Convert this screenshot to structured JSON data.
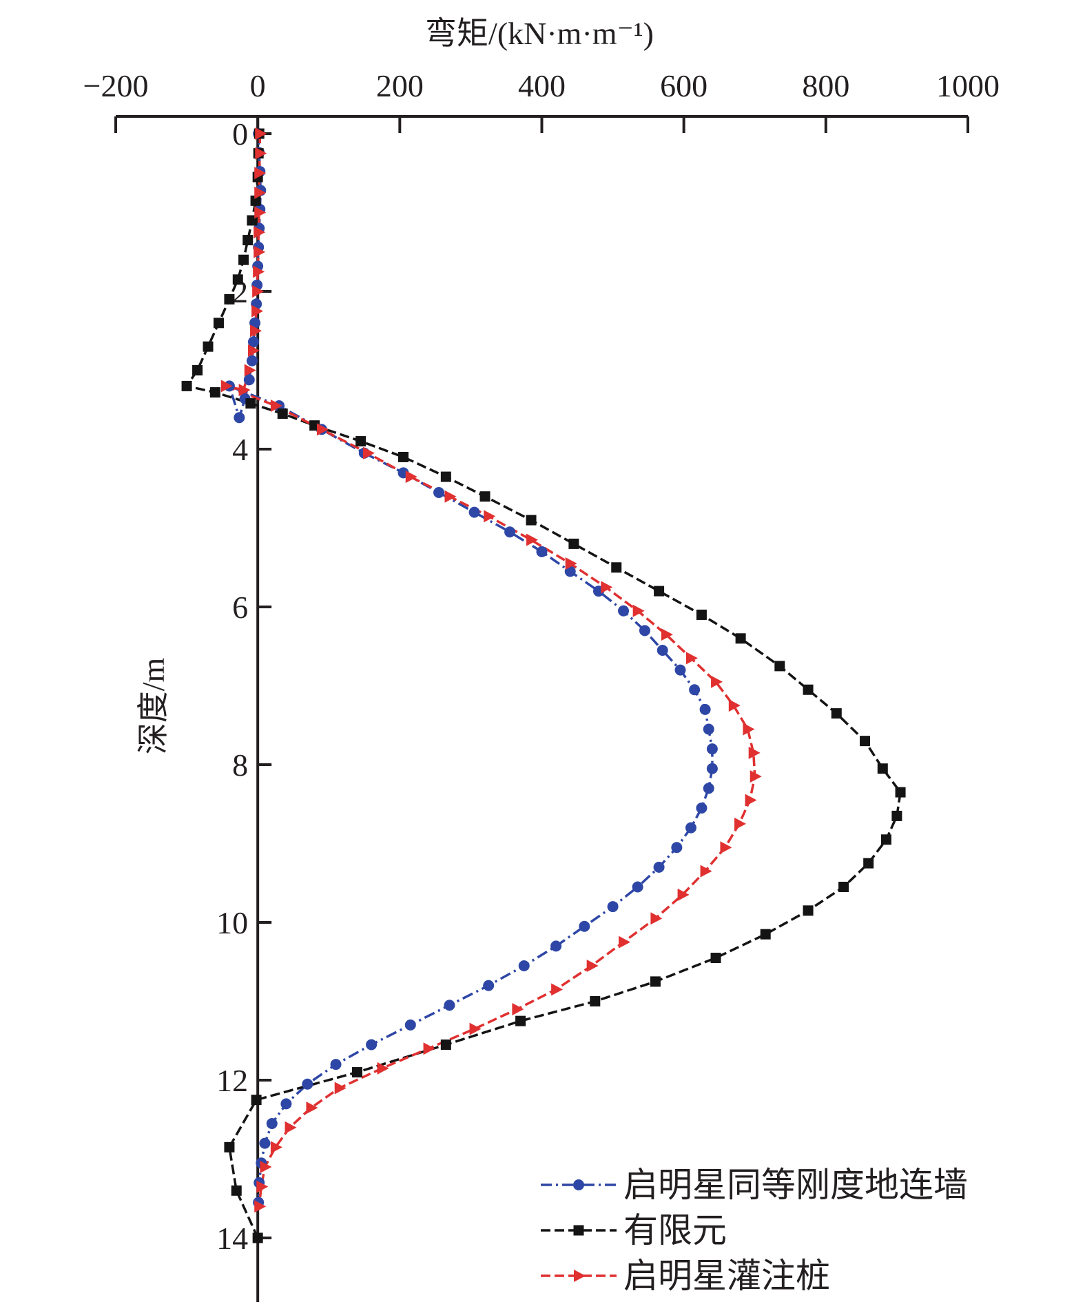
{
  "chart_data": {
    "type": "line",
    "xlabel": "弯矩/(kN·m·m⁻¹)",
    "ylabel": "深度/m",
    "xlim": [
      -200,
      1000
    ],
    "ylim": [
      0,
      15
    ],
    "x_axis_position": "top",
    "y_axis_inverted": true,
    "grid": false,
    "legend_position": "bottom-right",
    "xticks": [
      "−200",
      "0",
      "200",
      "400",
      "600",
      "800",
      "1000"
    ],
    "yticks": [
      "0",
      "2",
      "4",
      "6",
      "8",
      "10",
      "12",
      "14"
    ],
    "series": [
      {
        "name": "启明星同等刚度地连墙",
        "color": "#2e47a6",
        "marker": "circle",
        "dash": "dash-dot",
        "points": [
          [
            1,
            0
          ],
          [
            2,
            0.24
          ],
          [
            3,
            0.48
          ],
          [
            4,
            0.72
          ],
          [
            3,
            0.96
          ],
          [
            2,
            1.2
          ],
          [
            1,
            1.44
          ],
          [
            0,
            1.68
          ],
          [
            -1,
            1.92
          ],
          [
            -2,
            2.16
          ],
          [
            -4,
            2.4
          ],
          [
            -6,
            2.64
          ],
          [
            -8,
            2.88
          ],
          [
            -12,
            3.12
          ],
          [
            -18,
            3.36
          ],
          [
            -26,
            3.6
          ],
          [
            -40,
            3.2
          ],
          [
            30,
            3.45
          ],
          [
            90,
            3.75
          ],
          [
            150,
            4.05
          ],
          [
            205,
            4.3
          ],
          [
            255,
            4.55
          ],
          [
            305,
            4.8
          ],
          [
            355,
            5.05
          ],
          [
            400,
            5.3
          ],
          [
            440,
            5.55
          ],
          [
            480,
            5.8
          ],
          [
            515,
            6.05
          ],
          [
            545,
            6.3
          ],
          [
            570,
            6.55
          ],
          [
            595,
            6.8
          ],
          [
            615,
            7.05
          ],
          [
            630,
            7.3
          ],
          [
            635,
            7.55
          ],
          [
            640,
            7.8
          ],
          [
            640,
            8.05
          ],
          [
            635,
            8.3
          ],
          [
            625,
            8.55
          ],
          [
            610,
            8.8
          ],
          [
            590,
            9.05
          ],
          [
            565,
            9.3
          ],
          [
            535,
            9.55
          ],
          [
            500,
            9.8
          ],
          [
            460,
            10.05
          ],
          [
            420,
            10.3
          ],
          [
            375,
            10.55
          ],
          [
            325,
            10.8
          ],
          [
            270,
            11.05
          ],
          [
            215,
            11.3
          ],
          [
            160,
            11.55
          ],
          [
            110,
            11.8
          ],
          [
            70,
            12.05
          ],
          [
            40,
            12.3
          ],
          [
            20,
            12.55
          ],
          [
            10,
            12.8
          ],
          [
            5,
            13.05
          ],
          [
            2,
            13.3
          ],
          [
            1,
            13.55
          ]
        ]
      },
      {
        "name": "有限元",
        "color": "#141414",
        "marker": "square",
        "dash": "dashed",
        "points": [
          [
            2,
            0
          ],
          [
            1,
            0.25
          ],
          [
            0,
            0.55
          ],
          [
            -3,
            0.85
          ],
          [
            -8,
            1.1
          ],
          [
            -14,
            1.35
          ],
          [
            -20,
            1.6
          ],
          [
            -28,
            1.85
          ],
          [
            -40,
            2.1
          ],
          [
            -55,
            2.4
          ],
          [
            -70,
            2.7
          ],
          [
            -85,
            3.0
          ],
          [
            -100,
            3.2
          ],
          [
            -60,
            3.28
          ],
          [
            -10,
            3.42
          ],
          [
            35,
            3.55
          ],
          [
            80,
            3.7
          ],
          [
            145,
            3.9
          ],
          [
            205,
            4.1
          ],
          [
            265,
            4.35
          ],
          [
            320,
            4.6
          ],
          [
            385,
            4.9
          ],
          [
            445,
            5.2
          ],
          [
            505,
            5.5
          ],
          [
            565,
            5.8
          ],
          [
            625,
            6.1
          ],
          [
            680,
            6.4
          ],
          [
            735,
            6.75
          ],
          [
            775,
            7.05
          ],
          [
            815,
            7.35
          ],
          [
            855,
            7.7
          ],
          [
            880,
            8.05
          ],
          [
            905,
            8.35
          ],
          [
            900,
            8.65
          ],
          [
            885,
            8.95
          ],
          [
            860,
            9.25
          ],
          [
            825,
            9.55
          ],
          [
            775,
            9.85
          ],
          [
            715,
            10.15
          ],
          [
            645,
            10.45
          ],
          [
            560,
            10.75
          ],
          [
            475,
            11.0
          ],
          [
            370,
            11.25
          ],
          [
            265,
            11.55
          ],
          [
            140,
            11.9
          ],
          [
            -2,
            12.25
          ],
          [
            -40,
            12.85
          ],
          [
            -30,
            13.4
          ],
          [
            0,
            14.0
          ]
        ]
      },
      {
        "name": "启明星灌注桩",
        "color": "#e03030",
        "marker": "triangle-right",
        "dash": "dashed",
        "points": [
          [
            3,
            0
          ],
          [
            3,
            0.25
          ],
          [
            2,
            0.5
          ],
          [
            2,
            0.75
          ],
          [
            2,
            1.0
          ],
          [
            1,
            1.25
          ],
          [
            1,
            1.5
          ],
          [
            0,
            1.75
          ],
          [
            -1,
            2.0
          ],
          [
            -2,
            2.25
          ],
          [
            -4,
            2.5
          ],
          [
            -7,
            2.75
          ],
          [
            -12,
            3.0
          ],
          [
            -20,
            3.25
          ],
          [
            -45,
            3.2
          ],
          [
            25,
            3.45
          ],
          [
            90,
            3.75
          ],
          [
            155,
            4.05
          ],
          [
            215,
            4.35
          ],
          [
            270,
            4.6
          ],
          [
            325,
            4.85
          ],
          [
            385,
            5.15
          ],
          [
            440,
            5.45
          ],
          [
            490,
            5.75
          ],
          [
            535,
            6.05
          ],
          [
            575,
            6.35
          ],
          [
            610,
            6.65
          ],
          [
            645,
            6.95
          ],
          [
            670,
            7.25
          ],
          [
            690,
            7.55
          ],
          [
            698,
            7.85
          ],
          [
            700,
            8.15
          ],
          [
            693,
            8.45
          ],
          [
            678,
            8.75
          ],
          [
            658,
            9.05
          ],
          [
            630,
            9.35
          ],
          [
            598,
            9.65
          ],
          [
            560,
            9.95
          ],
          [
            515,
            10.25
          ],
          [
            470,
            10.55
          ],
          [
            420,
            10.85
          ],
          [
            365,
            11.1
          ],
          [
            305,
            11.35
          ],
          [
            240,
            11.6
          ],
          [
            175,
            11.85
          ],
          [
            115,
            12.1
          ],
          [
            75,
            12.35
          ],
          [
            45,
            12.6
          ],
          [
            25,
            12.85
          ],
          [
            10,
            13.1
          ],
          [
            5,
            13.35
          ],
          [
            2,
            13.6
          ]
        ]
      }
    ]
  }
}
